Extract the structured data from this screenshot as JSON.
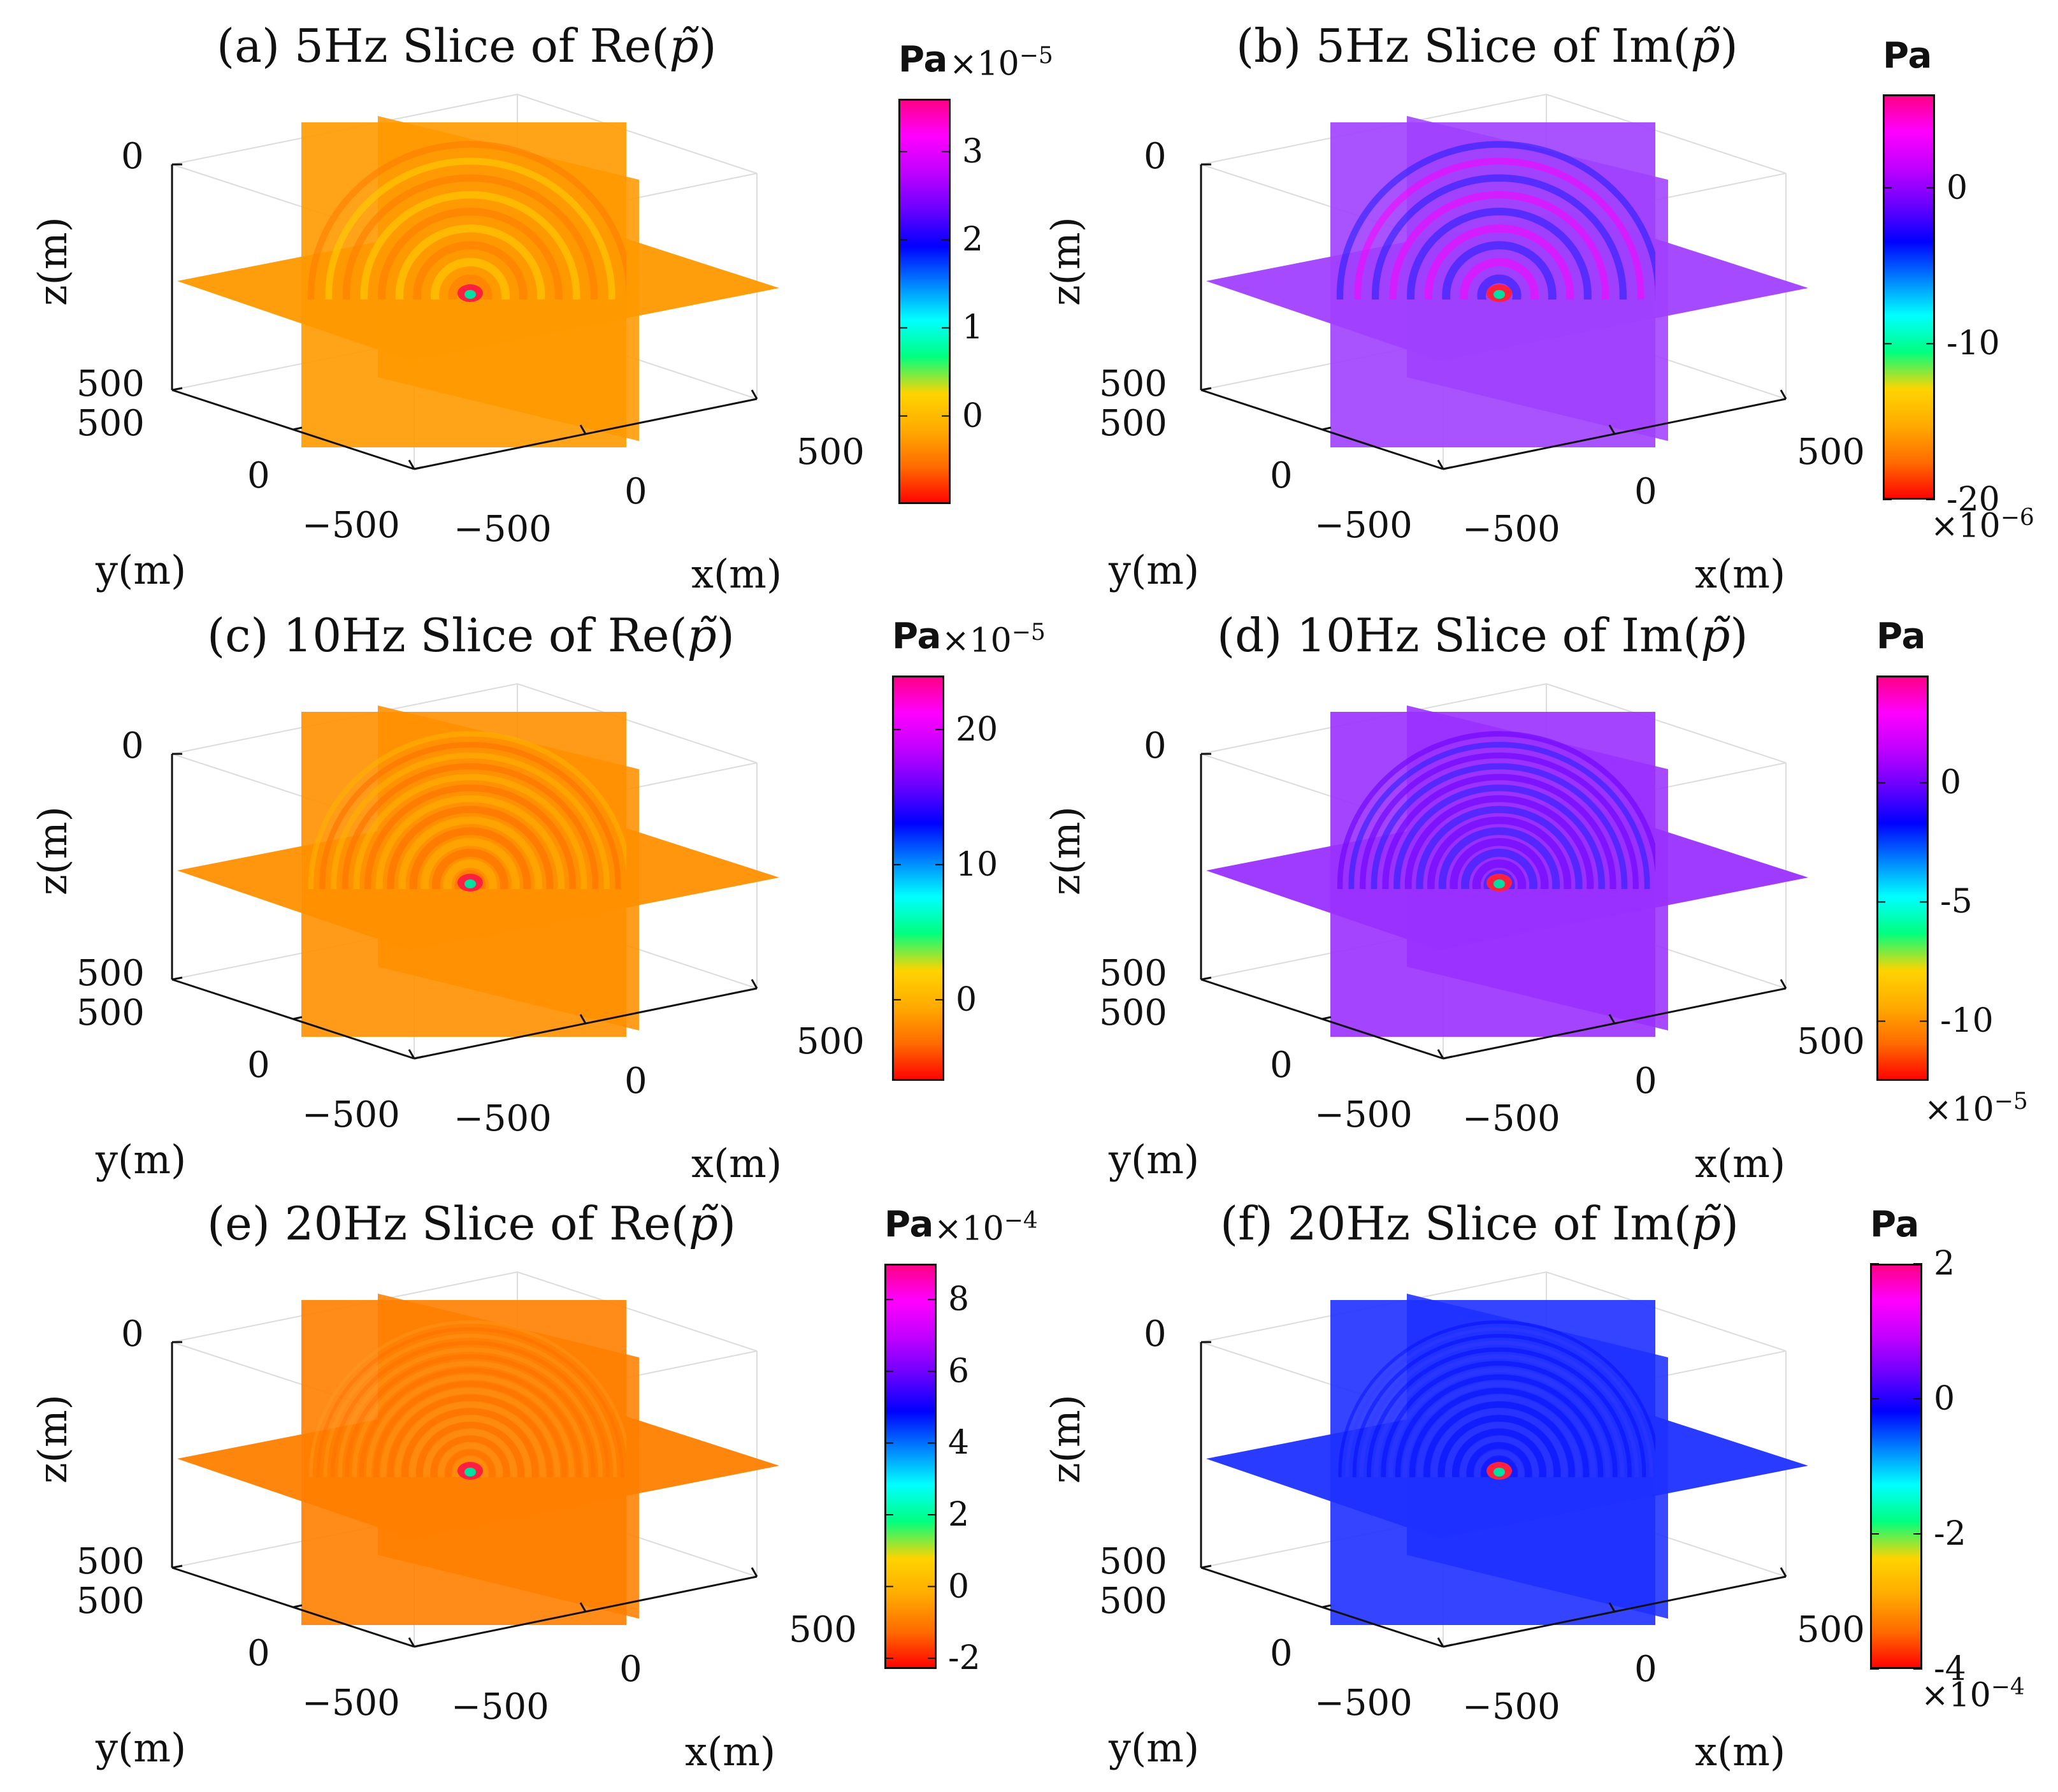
{
  "colormap": [
    "#ff0000",
    "#ff6a00",
    "#ffaa00",
    "#ffd400",
    "#00ff7f",
    "#00ffff",
    "#0080ff",
    "#0000ff",
    "#6a00ff",
    "#c000ff",
    "#ff00ff",
    "#ff0080"
  ],
  "chart_data": [
    {
      "id": "a",
      "type": "3d-slice",
      "title_prefix": "(a) 5Hz Slice of Re(",
      "title_symbol": "p̃",
      "title_suffix": ")",
      "xlabel": "x(m)",
      "ylabel": "y(m)",
      "zlabel": "z(m)",
      "x_ticks": [
        "−500",
        "0",
        "500"
      ],
      "y_ticks": [
        "500",
        "0",
        "−500"
      ],
      "z_ticks": [
        "0",
        "500"
      ],
      "xlim": [
        -500,
        500
      ],
      "ylim": [
        -500,
        500
      ],
      "zlim": [
        0,
        500
      ],
      "cbar": {
        "unit": "Pa",
        "multiplier": "×10",
        "exponent": "−5",
        "multiplier_position": "top",
        "ticks": [
          "3",
          "2",
          "1",
          "0"
        ],
        "tick_values": [
          3,
          2,
          1,
          0
        ],
        "range": [
          -1,
          3.6
        ]
      },
      "plane_color": "#ff9900",
      "ring_colors": [
        "#ffd400",
        "#ff7a00"
      ],
      "ring_count": 9,
      "rings_above": "0.55"
    },
    {
      "id": "b",
      "type": "3d-slice",
      "title_prefix": "(b) 5Hz Slice of Im(",
      "title_symbol": "p̃",
      "title_suffix": ")",
      "xlabel": "x(m)",
      "ylabel": "y(m)",
      "zlabel": "z(m)",
      "x_ticks": [
        "−500",
        "0",
        "500"
      ],
      "y_ticks": [
        "500",
        "0",
        "−500"
      ],
      "z_ticks": [
        "0",
        "500"
      ],
      "xlim": [
        -500,
        500
      ],
      "ylim": [
        -500,
        500
      ],
      "zlim": [
        0,
        500
      ],
      "cbar": {
        "unit": "Pa",
        "multiplier": "×10",
        "exponent": "−6",
        "multiplier_position": "bottom",
        "ticks": [
          "0",
          "-10",
          "-20"
        ],
        "tick_values": [
          0,
          -10,
          -20
        ],
        "range": [
          -20,
          6
        ]
      },
      "plane_color": "#a040ff",
      "ring_colors": [
        "#ff00ff",
        "#1b1bff"
      ],
      "ring_count": 9,
      "rings_above": "0.55"
    },
    {
      "id": "c",
      "type": "3d-slice",
      "title_prefix": "(c) 10Hz Slice of Re(",
      "title_symbol": "p̃",
      "title_suffix": ")",
      "xlabel": "x(m)",
      "ylabel": "y(m)",
      "zlabel": "z(m)",
      "x_ticks": [
        "−500",
        "0",
        "500"
      ],
      "y_ticks": [
        "500",
        "0",
        "−500"
      ],
      "z_ticks": [
        "0",
        "500"
      ],
      "xlim": [
        -500,
        500
      ],
      "ylim": [
        -500,
        500
      ],
      "zlim": [
        0,
        500
      ],
      "cbar": {
        "unit": "Pa",
        "multiplier": "×10",
        "exponent": "−5",
        "multiplier_position": "top",
        "ticks": [
          "20",
          "10",
          "0"
        ],
        "tick_values": [
          20,
          10,
          0
        ],
        "range": [
          -6,
          24
        ]
      },
      "plane_color": "#ff9000",
      "ring_colors": [
        "#ffb000",
        "#ff7000"
      ],
      "ring_count": 14,
      "rings_above": "0.6"
    },
    {
      "id": "d",
      "type": "3d-slice",
      "title_prefix": "(d) 10Hz Slice of Im(",
      "title_symbol": "p̃",
      "title_suffix": ")",
      "xlabel": "x(m)",
      "ylabel": "y(m)",
      "zlabel": "z(m)",
      "x_ticks": [
        "−500",
        "0",
        "500"
      ],
      "y_ticks": [
        "500",
        "0",
        "−500"
      ],
      "z_ticks": [
        "0",
        "500"
      ],
      "xlim": [
        -500,
        500
      ],
      "ylim": [
        -500,
        500
      ],
      "zlim": [
        0,
        500
      ],
      "cbar": {
        "unit": "Pa",
        "multiplier": "×10",
        "exponent": "−5",
        "multiplier_position": "bottom",
        "ticks": [
          "0",
          "-5",
          "-10"
        ],
        "tick_values": [
          0,
          -5,
          -10
        ],
        "range": [
          -12.5,
          4.5
        ]
      },
      "plane_color": "#9a30ff",
      "ring_colors": [
        "#6a00ff",
        "#2a20ff"
      ],
      "ring_count": 14,
      "rings_above": "0.6"
    },
    {
      "id": "e",
      "type": "3d-slice",
      "title_prefix": "(e) 20Hz Slice of Re(",
      "title_symbol": "p̃",
      "title_suffix": ")",
      "xlabel": "x(m)",
      "ylabel": "y(m)",
      "zlabel": "z(m)",
      "x_ticks": [
        "−500",
        "0",
        "500"
      ],
      "y_ticks": [
        "500",
        "0",
        "−500"
      ],
      "z_ticks": [
        "0",
        "500"
      ],
      "xlim": [
        -500,
        500
      ],
      "ylim": [
        -500,
        500
      ],
      "zlim": [
        0,
        500
      ],
      "cbar": {
        "unit": "Pa",
        "multiplier": "×10",
        "exponent": "−4",
        "multiplier_position": "top",
        "ticks": [
          "8",
          "6",
          "4",
          "2",
          "0",
          "-2"
        ],
        "tick_values": [
          8,
          6,
          4,
          2,
          0,
          -2
        ],
        "range": [
          -2.3,
          9
        ]
      },
      "plane_color": "#ff8000",
      "ring_colors": [
        "#ff9a20",
        "#ff6a00"
      ],
      "ring_count": 22,
      "rings_above": "0.4"
    },
    {
      "id": "f",
      "type": "3d-slice",
      "title_prefix": "(f) 20Hz Slice of Im(",
      "title_symbol": "p̃",
      "title_suffix": ")",
      "xlabel": "x(m)",
      "ylabel": "y(m)",
      "zlabel": "z(m)",
      "x_ticks": [
        "−500",
        "0",
        "500"
      ],
      "y_ticks": [
        "500",
        "0",
        "−500"
      ],
      "z_ticks": [
        "0",
        "500"
      ],
      "xlim": [
        -500,
        500
      ],
      "ylim": [
        -500,
        500
      ],
      "zlim": [
        0,
        500
      ],
      "cbar": {
        "unit": "Pa",
        "multiplier": "×10",
        "exponent": "−4",
        "multiplier_position": "bottom",
        "ticks": [
          "2",
          "0",
          "-2",
          "-4"
        ],
        "tick_values": [
          2,
          0,
          -2,
          -4
        ],
        "range": [
          -4,
          2
        ]
      },
      "plane_color": "#1e30ff",
      "ring_colors": [
        "#0000ff",
        "#3a3aff"
      ],
      "ring_count": 22,
      "rings_above": "0.4"
    }
  ]
}
